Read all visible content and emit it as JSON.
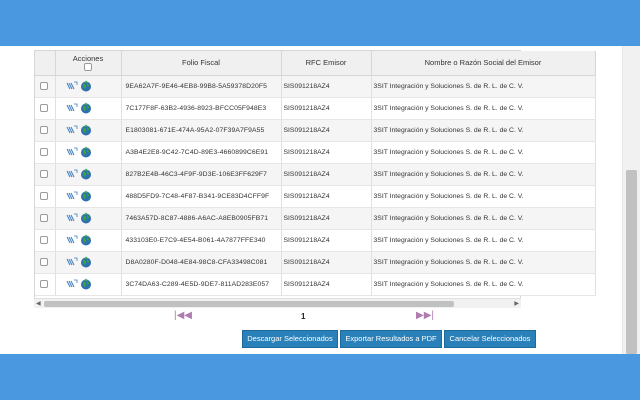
{
  "colors": {
    "accent_bar": "#4a98e0",
    "button_bg": "#2a80b9",
    "pager_arrows": "#b07bb0"
  },
  "table": {
    "headers": {
      "acciones": "Acciones",
      "folio": "Folio Fiscal",
      "rfc": "RFC Emisor",
      "razon": "Nombre o Razón Social del Emisor"
    },
    "action_icons": [
      "sat-download-icon",
      "globe-icon"
    ],
    "rows": [
      {
        "folio": "9EA62A7F-9E46-4EB8-99B8-5A59378D20F5",
        "rfc": "SIS091218AZ4",
        "razon": "3SIT Integración y Soluciones S. de R. L. de C. V."
      },
      {
        "folio": "7C177F8F-63B2-4936-8923-BFCC05F948E3",
        "rfc": "SIS091218AZ4",
        "razon": "3SIT Integración y Soluciones S. de R. L. de C. V."
      },
      {
        "folio": "E1803081-671E-474A-95A2-07F39A7F9A55",
        "rfc": "SIS091218AZ4",
        "razon": "3SIT Integración y Soluciones S. de R. L. de C. V."
      },
      {
        "folio": "A3B4E2E8-9C42-7C4D-89E3-4660899C6E91",
        "rfc": "SIS091218AZ4",
        "razon": "3SIT Integración y Soluciones S. de R. L. de C. V."
      },
      {
        "folio": "827B2E4B-46C3-4F9F-9D3E-106E3FF629F7",
        "rfc": "SIS091218AZ4",
        "razon": "3SIT Integración y Soluciones S. de R. L. de C. V."
      },
      {
        "folio": "488D5FD9-7C48-4F87-B341-9CE83D4CFF9F",
        "rfc": "SIS091218AZ4",
        "razon": "3SIT Integración y Soluciones S. de R. L. de C. V."
      },
      {
        "folio": "7463A57D-8C87-4886-A6AC-A8EB0905FB71",
        "rfc": "SIS091218AZ4",
        "razon": "3SIT Integración y Soluciones S. de R. L. de C. V."
      },
      {
        "folio": "433103E0-E7C9-4E54-B061-4A7877FFE340",
        "rfc": "SIS091218AZ4",
        "razon": "3SIT Integración y Soluciones S. de R. L. de C. V."
      },
      {
        "folio": "D8A0280F-D048-4E84-98C8-CFA33498C081",
        "rfc": "SIS091218AZ4",
        "razon": "3SIT Integración y Soluciones S. de R. L. de C. V."
      },
      {
        "folio": "3C74DA63-C289-4E5D-9DE7-811AD283E057",
        "rfc": "SIS091218AZ4",
        "razon": "3SIT Integración y Soluciones S. de R. L. de C. V."
      }
    ]
  },
  "pager": {
    "first": "|◀◀",
    "page": "1",
    "last": "▶▶|"
  },
  "buttons": {
    "descargar": "Descargar Seleccionados",
    "exportar": "Exportar Resultados a PDF",
    "cancelar": "Cancelar Seleccionados"
  }
}
